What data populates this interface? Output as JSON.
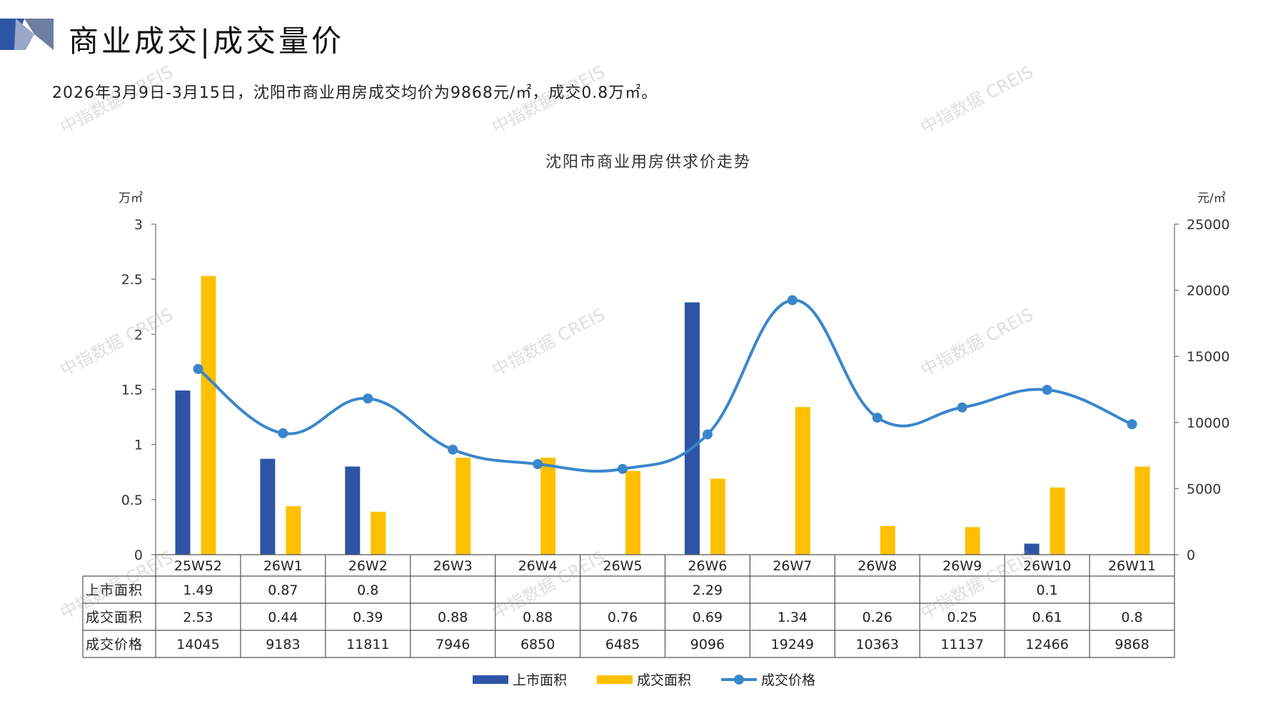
{
  "header": {
    "title": "商业成交|成交量价"
  },
  "summary": "2026年3月9日-3月15日，沈阳市商业用房成交均价为9868元/㎡，成交0.8万㎡。",
  "watermark_text": "中指数据 CREIS",
  "colors": {
    "supply": "#2E55A5",
    "deal_area": "#FFC000",
    "deal_price": "#3A86CB",
    "axis": "#888888",
    "table_border": "#555555"
  },
  "chart_data": {
    "type": "bar",
    "title": "沈阳市商业用房供求价走势",
    "left_unit": "万㎡",
    "right_unit": "元/㎡",
    "left_ylim": [
      0,
      3
    ],
    "left_ticks": [
      "0",
      "0.5",
      "1",
      "1.5",
      "2",
      "2.5",
      "3"
    ],
    "right_ylim": [
      0,
      25000
    ],
    "right_ticks": [
      "0",
      "5000",
      "10000",
      "15000",
      "20000",
      "25000"
    ],
    "categories": [
      "25W52",
      "26W1",
      "26W2",
      "26W3",
      "26W4",
      "26W5",
      "26W6",
      "26W7",
      "26W8",
      "26W9",
      "26W10",
      "26W11"
    ],
    "series": [
      {
        "name": "上市面积",
        "kind": "bar",
        "axis": "left",
        "values": [
          1.49,
          0.87,
          0.8,
          null,
          null,
          null,
          2.29,
          null,
          null,
          null,
          0.1,
          null
        ],
        "labels": [
          "1.49",
          "0.87",
          "0.8",
          "",
          "",
          "",
          "2.29",
          "",
          "",
          "",
          "0.1",
          ""
        ]
      },
      {
        "name": "成交面积",
        "kind": "bar",
        "axis": "left",
        "values": [
          2.53,
          0.44,
          0.39,
          0.88,
          0.88,
          0.76,
          0.69,
          1.34,
          0.26,
          0.25,
          0.61,
          0.8
        ],
        "labels": [
          "2.53",
          "0.44",
          "0.39",
          "0.88",
          "0.88",
          "0.76",
          "0.69",
          "1.34",
          "0.26",
          "0.25",
          "0.61",
          "0.8"
        ]
      },
      {
        "name": "成交价格",
        "kind": "line",
        "axis": "right",
        "values": [
          14045,
          9183,
          11811,
          7946,
          6850,
          6485,
          9096,
          19249,
          10363,
          11137,
          12466,
          9868
        ],
        "labels": [
          "14045",
          "9183",
          "11811",
          "7946",
          "6850",
          "6485",
          "9096",
          "19249",
          "10363",
          "11137",
          "12466",
          "9868"
        ]
      }
    ],
    "legend_position": "bottom",
    "grid": false
  }
}
